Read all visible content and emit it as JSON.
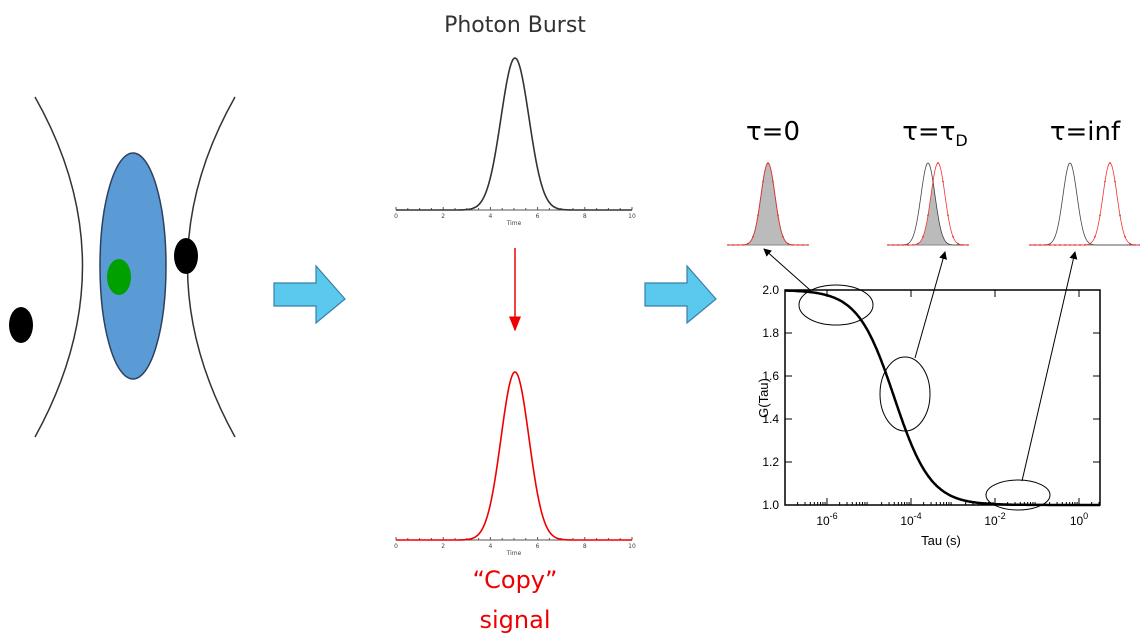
{
  "burst": {
    "title": "Photon Burst",
    "x_label": "Time",
    "ticks": [
      "0",
      "2",
      "4",
      "6",
      "8",
      "10"
    ]
  },
  "copy": {
    "line1": "“Copy”",
    "line2": "signal"
  },
  "lags": [
    {
      "label": "τ=0"
    },
    {
      "label": "τ=τ",
      "sub": "D"
    },
    {
      "label": "τ=inf"
    }
  ],
  "plot": {
    "y_label": "G(Tau)",
    "x_label": "Tau (s)",
    "yticks": [
      {
        "value": 1,
        "label": "1.0"
      },
      {
        "value": 1.2,
        "label": "1.2"
      },
      {
        "value": 1.4,
        "label": "1.4"
      },
      {
        "value": 1.6,
        "label": "1.6"
      },
      {
        "value": 1.8,
        "label": "1.8"
      },
      {
        "value": 2,
        "label": "2.0"
      }
    ],
    "xticks": [
      {
        "value": 1e-06,
        "label": "10",
        "sup": "-6"
      },
      {
        "value": 0.0001,
        "label": "10",
        "sup": "-4"
      },
      {
        "value": 0.01,
        "label": "10",
        "sup": "-2"
      },
      {
        "value": 1,
        "label": "10",
        "sup": "0"
      }
    ]
  }
}
